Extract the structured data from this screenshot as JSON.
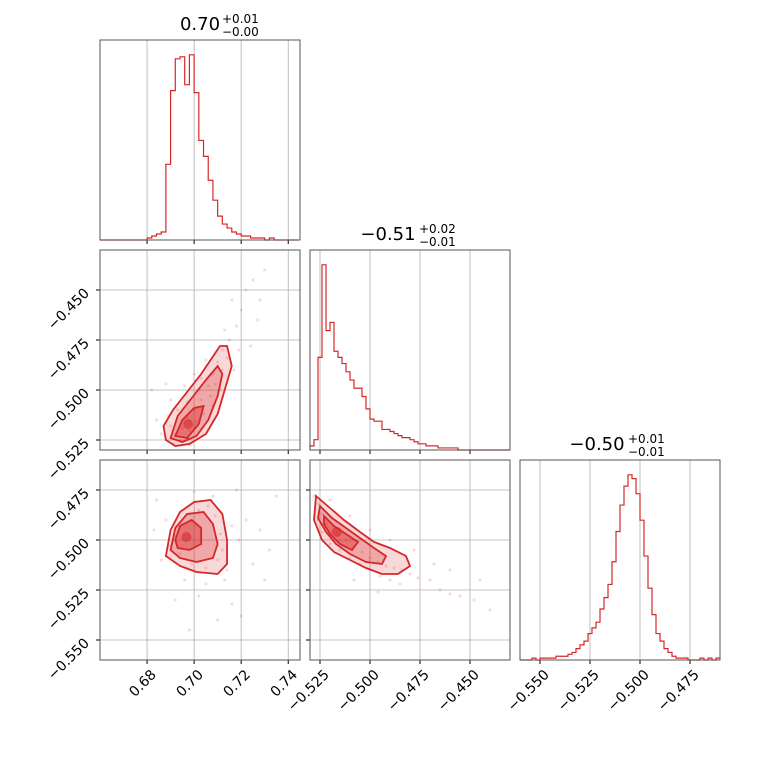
{
  "chart_data": {
    "type": "corner",
    "color": "#d62728",
    "grid": true,
    "parameters": [
      {
        "title": {
          "median": "0.70",
          "plus": "+0.01",
          "minus": "−0.00"
        },
        "range": [
          0.66,
          0.745
        ],
        "ticks": [
          "0.68",
          "0.70",
          "0.72",
          "0.74"
        ],
        "tick_values": [
          0.68,
          0.7,
          0.72,
          0.74
        ]
      },
      {
        "title": {
          "median": "−0.51",
          "plus": "+0.02",
          "minus": "−0.01"
        },
        "range": [
          -0.53,
          -0.43
        ],
        "ticks": [
          "−0.525",
          "−0.500",
          "−0.475",
          "−0.450"
        ],
        "tick_values": [
          -0.525,
          -0.5,
          -0.475,
          -0.45
        ]
      },
      {
        "title": {
          "median": "−0.50",
          "plus": "+0.01",
          "minus": "−0.01"
        },
        "range": [
          -0.56,
          -0.46
        ],
        "ticks": [
          "−0.550",
          "−0.525",
          "−0.500",
          "−0.475"
        ],
        "tick_values": [
          -0.55,
          -0.525,
          -0.5,
          -0.475
        ]
      }
    ],
    "hist_0": {
      "bins": [
        0.66,
        0.662,
        0.664,
        0.666,
        0.668,
        0.67,
        0.672,
        0.674,
        0.676,
        0.678,
        0.68,
        0.682,
        0.684,
        0.686,
        0.688,
        0.69,
        0.692,
        0.694,
        0.696,
        0.698,
        0.7,
        0.702,
        0.704,
        0.706,
        0.708,
        0.71,
        0.712,
        0.714,
        0.716,
        0.718,
        0.72,
        0.722,
        0.724,
        0.726,
        0.728,
        0.73,
        0.732,
        0.734,
        0.736,
        0.738,
        0.74,
        0.742,
        0.744
      ],
      "counts": [
        0,
        0,
        0,
        0,
        0,
        0,
        0,
        0,
        0,
        0,
        1,
        2,
        3,
        4,
        38,
        75,
        91,
        92,
        78,
        93,
        74,
        50,
        42,
        30,
        20,
        12,
        8,
        6,
        4,
        3,
        2,
        2,
        1,
        1,
        1,
        0,
        1,
        0,
        0,
        0,
        0,
        0
      ]
    },
    "hist_1": {
      "bins": [
        -0.53,
        -0.528,
        -0.526,
        -0.524,
        -0.522,
        -0.52,
        -0.518,
        -0.516,
        -0.514,
        -0.512,
        -0.51,
        -0.508,
        -0.506,
        -0.504,
        -0.502,
        -0.5,
        -0.498,
        -0.496,
        -0.494,
        -0.492,
        -0.49,
        -0.488,
        -0.486,
        -0.484,
        -0.482,
        -0.48,
        -0.478,
        -0.476,
        -0.474,
        -0.472,
        -0.47,
        -0.468,
        -0.466,
        -0.464,
        -0.462,
        -0.46,
        -0.458,
        -0.456,
        -0.454,
        -0.452,
        -0.45,
        -0.44,
        -0.43
      ],
      "counts": [
        2,
        5,
        45,
        90,
        58,
        62,
        48,
        45,
        42,
        38,
        34,
        30,
        30,
        26,
        20,
        15,
        14,
        14,
        10,
        10,
        9,
        8,
        7,
        6,
        6,
        5,
        4,
        3,
        3,
        2,
        2,
        2,
        1,
        1,
        1,
        1,
        1,
        0,
        0,
        0,
        0,
        0
      ]
    },
    "hist_2": {
      "bins": [
        -0.56,
        -0.558,
        -0.556,
        -0.554,
        -0.552,
        -0.55,
        -0.548,
        -0.546,
        -0.544,
        -0.542,
        -0.54,
        -0.538,
        -0.536,
        -0.534,
        -0.532,
        -0.53,
        -0.528,
        -0.526,
        -0.524,
        -0.522,
        -0.52,
        -0.518,
        -0.516,
        -0.514,
        -0.512,
        -0.51,
        -0.508,
        -0.506,
        -0.504,
        -0.502,
        -0.5,
        -0.498,
        -0.496,
        -0.494,
        -0.492,
        -0.49,
        -0.488,
        -0.486,
        -0.484,
        -0.482,
        -0.48,
        -0.478,
        -0.476,
        -0.474,
        -0.472,
        -0.47,
        -0.468,
        -0.466,
        -0.464,
        -0.462,
        -0.46
      ],
      "counts": [
        0,
        0,
        0,
        1,
        0,
        1,
        1,
        1,
        1,
        2,
        2,
        2,
        3,
        4,
        6,
        8,
        10,
        14,
        17,
        20,
        27,
        33,
        40,
        52,
        68,
        82,
        92,
        98,
        96,
        88,
        74,
        55,
        38,
        24,
        14,
        10,
        6,
        4,
        2,
        1,
        1,
        1,
        0,
        0,
        0,
        1,
        0,
        1,
        0,
        1
      ]
    },
    "pair_1_0": {
      "points": [
        [
          0.692,
          -0.522
        ],
        [
          0.695,
          -0.519
        ],
        [
          0.697,
          -0.514
        ],
        [
          0.7,
          -0.51
        ],
        [
          0.703,
          -0.505
        ],
        [
          0.706,
          -0.498
        ],
        [
          0.708,
          -0.492
        ],
        [
          0.71,
          -0.486
        ],
        [
          0.712,
          -0.48
        ],
        [
          0.694,
          -0.525
        ],
        [
          0.698,
          -0.52
        ],
        [
          0.701,
          -0.516
        ],
        [
          0.69,
          -0.518
        ],
        [
          0.704,
          -0.512
        ],
        [
          0.707,
          -0.503
        ],
        [
          0.709,
          -0.497
        ],
        [
          0.712,
          -0.49
        ],
        [
          0.714,
          -0.484
        ],
        [
          0.689,
          -0.513
        ],
        [
          0.693,
          -0.51
        ],
        [
          0.697,
          -0.506
        ],
        [
          0.702,
          -0.5
        ],
        [
          0.715,
          -0.475
        ],
        [
          0.718,
          -0.468
        ],
        [
          0.72,
          -0.46
        ],
        [
          0.716,
          -0.455
        ],
        [
          0.722,
          -0.45
        ],
        [
          0.725,
          -0.445
        ],
        [
          0.686,
          -0.522
        ],
        [
          0.684,
          -0.515
        ],
        [
          0.7,
          -0.492
        ],
        [
          0.705,
          -0.485
        ],
        [
          0.713,
          -0.47
        ],
        [
          0.69,
          -0.505
        ],
        [
          0.711,
          -0.5
        ],
        [
          0.708,
          -0.508
        ],
        [
          0.717,
          -0.49
        ],
        [
          0.719,
          -0.48
        ],
        [
          0.696,
          -0.498
        ],
        [
          0.703,
          -0.494
        ],
        [
          0.727,
          -0.465
        ],
        [
          0.73,
          -0.44
        ],
        [
          0.682,
          -0.5
        ],
        [
          0.688,
          -0.497
        ],
        [
          0.724,
          -0.478
        ],
        [
          0.728,
          -0.455
        ],
        [
          0.698,
          -0.527
        ],
        [
          0.691,
          -0.527
        ]
      ],
      "contours": [
        [
          [
            0.688,
            -0.525
          ],
          [
            0.692,
            -0.528
          ],
          [
            0.698,
            -0.527
          ],
          [
            0.705,
            -0.522
          ],
          [
            0.71,
            -0.512
          ],
          [
            0.713,
            -0.5
          ],
          [
            0.716,
            -0.488
          ],
          [
            0.714,
            -0.478
          ],
          [
            0.711,
            -0.478
          ],
          [
            0.707,
            -0.485
          ],
          [
            0.703,
            -0.492
          ],
          [
            0.697,
            -0.501
          ],
          [
            0.691,
            -0.51
          ],
          [
            0.687,
            -0.518
          ],
          [
            0.688,
            -0.525
          ]
        ],
        [
          [
            0.69,
            -0.524
          ],
          [
            0.695,
            -0.526
          ],
          [
            0.701,
            -0.523
          ],
          [
            0.706,
            -0.515
          ],
          [
            0.71,
            -0.503
          ],
          [
            0.712,
            -0.492
          ],
          [
            0.71,
            -0.488
          ],
          [
            0.705,
            -0.495
          ],
          [
            0.699,
            -0.504
          ],
          [
            0.693,
            -0.513
          ],
          [
            0.69,
            -0.524
          ]
        ],
        [
          [
            0.692,
            -0.523
          ],
          [
            0.697,
            -0.524
          ],
          [
            0.702,
            -0.517
          ],
          [
            0.704,
            -0.508
          ],
          [
            0.7,
            -0.509
          ],
          [
            0.695,
            -0.515
          ],
          [
            0.692,
            -0.523
          ]
        ]
      ]
    },
    "pair_2_0": {
      "points": [
        [
          0.692,
          -0.498
        ],
        [
          0.695,
          -0.492
        ],
        [
          0.698,
          -0.487
        ],
        [
          0.702,
          -0.485
        ],
        [
          0.706,
          -0.483
        ],
        [
          0.709,
          -0.488
        ],
        [
          0.711,
          -0.497
        ],
        [
          0.712,
          -0.505
        ],
        [
          0.71,
          -0.51
        ],
        [
          0.705,
          -0.514
        ],
        [
          0.699,
          -0.512
        ],
        [
          0.694,
          -0.507
        ],
        [
          0.69,
          -0.503
        ],
        [
          0.714,
          -0.515
        ],
        [
          0.716,
          -0.493
        ],
        [
          0.708,
          -0.478
        ],
        [
          0.7,
          -0.476
        ],
        [
          0.688,
          -0.49
        ],
        [
          0.686,
          -0.51
        ],
        [
          0.696,
          -0.52
        ],
        [
          0.705,
          -0.522
        ],
        [
          0.713,
          -0.52
        ],
        [
          0.719,
          -0.5
        ],
        [
          0.722,
          -0.49
        ],
        [
          0.718,
          -0.475
        ],
        [
          0.725,
          -0.512
        ],
        [
          0.728,
          -0.495
        ],
        [
          0.73,
          -0.52
        ],
        [
          0.683,
          -0.495
        ],
        [
          0.684,
          -0.48
        ],
        [
          0.702,
          -0.528
        ],
        [
          0.716,
          -0.532
        ],
        [
          0.72,
          -0.538
        ],
        [
          0.732,
          -0.505
        ],
        [
          0.735,
          -0.478
        ],
        [
          0.71,
          -0.54
        ],
        [
          0.692,
          -0.53
        ],
        [
          0.698,
          -0.545
        ]
      ],
      "contours": [
        [
          [
            0.688,
            -0.508
          ],
          [
            0.69,
            -0.495
          ],
          [
            0.694,
            -0.486
          ],
          [
            0.7,
            -0.481
          ],
          [
            0.707,
            -0.48
          ],
          [
            0.712,
            -0.487
          ],
          [
            0.714,
            -0.5
          ],
          [
            0.714,
            -0.512
          ],
          [
            0.71,
            -0.517
          ],
          [
            0.701,
            -0.516
          ],
          [
            0.694,
            -0.513
          ],
          [
            0.688,
            -0.508
          ]
        ],
        [
          [
            0.69,
            -0.505
          ],
          [
            0.692,
            -0.494
          ],
          [
            0.697,
            -0.487
          ],
          [
            0.704,
            -0.486
          ],
          [
            0.708,
            -0.492
          ],
          [
            0.71,
            -0.502
          ],
          [
            0.708,
            -0.509
          ],
          [
            0.701,
            -0.511
          ],
          [
            0.694,
            -0.509
          ],
          [
            0.69,
            -0.505
          ]
        ],
        [
          [
            0.692,
            -0.5
          ],
          [
            0.694,
            -0.493
          ],
          [
            0.699,
            -0.49
          ],
          [
            0.703,
            -0.494
          ],
          [
            0.703,
            -0.502
          ],
          [
            0.698,
            -0.505
          ],
          [
            0.693,
            -0.504
          ],
          [
            0.692,
            -0.5
          ]
        ]
      ]
    },
    "pair_2_1": {
      "points": [
        [
          -0.526,
          -0.482
        ],
        [
          -0.524,
          -0.487
        ],
        [
          -0.522,
          -0.492
        ],
        [
          -0.519,
          -0.496
        ],
        [
          -0.516,
          -0.498
        ],
        [
          -0.512,
          -0.5
        ],
        [
          -0.508,
          -0.503
        ],
        [
          -0.504,
          -0.506
        ],
        [
          -0.5,
          -0.509
        ],
        [
          -0.496,
          -0.511
        ],
        [
          -0.492,
          -0.513
        ],
        [
          -0.488,
          -0.514
        ],
        [
          -0.484,
          -0.515
        ],
        [
          -0.48,
          -0.517
        ],
        [
          -0.476,
          -0.519
        ],
        [
          -0.526,
          -0.49
        ],
        [
          -0.524,
          -0.496
        ],
        [
          -0.52,
          -0.502
        ],
        [
          -0.515,
          -0.505
        ],
        [
          -0.51,
          -0.509
        ],
        [
          -0.505,
          -0.512
        ],
        [
          -0.5,
          -0.515
        ],
        [
          -0.495,
          -0.518
        ],
        [
          -0.49,
          -0.52
        ],
        [
          -0.485,
          -0.522
        ],
        [
          -0.47,
          -0.52
        ],
        [
          -0.465,
          -0.525
        ],
        [
          -0.46,
          -0.527
        ],
        [
          -0.455,
          -0.528
        ],
        [
          -0.448,
          -0.53
        ],
        [
          -0.528,
          -0.478
        ],
        [
          -0.52,
          -0.48
        ],
        [
          -0.51,
          -0.488
        ],
        [
          -0.5,
          -0.495
        ],
        [
          -0.49,
          -0.5
        ],
        [
          -0.478,
          -0.505
        ],
        [
          -0.468,
          -0.512
        ],
        [
          -0.46,
          -0.515
        ],
        [
          -0.44,
          -0.535
        ],
        [
          -0.445,
          -0.52
        ],
        [
          -0.508,
          -0.52
        ],
        [
          -0.496,
          -0.526
        ]
      ],
      "contours": [
        [
          [
            -0.527,
            -0.478
          ],
          [
            -0.52,
            -0.484
          ],
          [
            -0.513,
            -0.49
          ],
          [
            -0.505,
            -0.496
          ],
          [
            -0.498,
            -0.501
          ],
          [
            -0.49,
            -0.504
          ],
          [
            -0.482,
            -0.508
          ],
          [
            -0.48,
            -0.513
          ],
          [
            -0.486,
            -0.517
          ],
          [
            -0.494,
            -0.517
          ],
          [
            -0.502,
            -0.514
          ],
          [
            -0.51,
            -0.51
          ],
          [
            -0.518,
            -0.506
          ],
          [
            -0.524,
            -0.5
          ],
          [
            -0.528,
            -0.49
          ],
          [
            -0.527,
            -0.478
          ]
        ],
        [
          [
            -0.525,
            -0.483
          ],
          [
            -0.519,
            -0.489
          ],
          [
            -0.512,
            -0.494
          ],
          [
            -0.505,
            -0.499
          ],
          [
            -0.498,
            -0.504
          ],
          [
            -0.492,
            -0.508
          ],
          [
            -0.494,
            -0.512
          ],
          [
            -0.502,
            -0.511
          ],
          [
            -0.51,
            -0.507
          ],
          [
            -0.517,
            -0.502
          ],
          [
            -0.522,
            -0.496
          ],
          [
            -0.526,
            -0.489
          ],
          [
            -0.525,
            -0.483
          ]
        ],
        [
          [
            -0.523,
            -0.488
          ],
          [
            -0.518,
            -0.493
          ],
          [
            -0.512,
            -0.497
          ],
          [
            -0.506,
            -0.501
          ],
          [
            -0.509,
            -0.505
          ],
          [
            -0.515,
            -0.502
          ],
          [
            -0.52,
            -0.497
          ],
          [
            -0.523,
            -0.492
          ],
          [
            -0.523,
            -0.488
          ]
        ]
      ]
    }
  }
}
